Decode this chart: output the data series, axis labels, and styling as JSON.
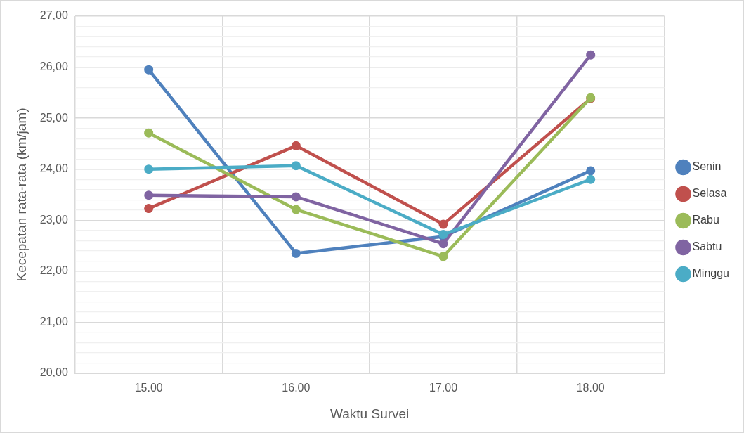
{
  "chart_data": {
    "type": "line",
    "xlabel": "Waktu Survei",
    "ylabel": "Kecepatan rata-rata (km/jam)",
    "categories": [
      "15.00",
      "16.00",
      "17.00",
      "18.00"
    ],
    "series": [
      {
        "name": "Senin",
        "color": "#4f81bd",
        "values": [
          25.95,
          22.35,
          22.68,
          23.97
        ]
      },
      {
        "name": "Selasa",
        "color": "#c0504d",
        "values": [
          23.23,
          24.46,
          22.92,
          25.39
        ]
      },
      {
        "name": "Rabu",
        "color": "#9bbb59",
        "values": [
          24.71,
          23.21,
          22.29,
          25.4
        ]
      },
      {
        "name": "Sabtu",
        "color": "#8064a2",
        "values": [
          23.49,
          23.46,
          22.54,
          26.24
        ]
      },
      {
        "name": "Minggu",
        "color": "#4bacc6",
        "values": [
          24.0,
          24.07,
          22.72,
          23.8
        ]
      }
    ],
    "ylim": [
      20,
      27
    ],
    "yticks": [
      {
        "value": 20,
        "label": "20,00"
      },
      {
        "value": 20.2,
        "label": null
      },
      {
        "value": 20.4,
        "label": null
      },
      {
        "value": 20.6,
        "label": null
      },
      {
        "value": 20.8,
        "label": null
      },
      {
        "value": 21,
        "label": "21,00"
      },
      {
        "value": 21.2,
        "label": null
      },
      {
        "value": 21.4,
        "label": null
      },
      {
        "value": 21.6,
        "label": null
      },
      {
        "value": 21.8,
        "label": null
      },
      {
        "value": 22,
        "label": "22,00"
      },
      {
        "value": 22.2,
        "label": null
      },
      {
        "value": 22.4,
        "label": null
      },
      {
        "value": 22.6,
        "label": null
      },
      {
        "value": 22.8,
        "label": null
      },
      {
        "value": 23,
        "label": "23,00"
      },
      {
        "value": 23.2,
        "label": null
      },
      {
        "value": 23.4,
        "label": null
      },
      {
        "value": 23.6,
        "label": null
      },
      {
        "value": 23.8,
        "label": null
      },
      {
        "value": 24,
        "label": "24,00"
      },
      {
        "value": 24.2,
        "label": null
      },
      {
        "value": 24.4,
        "label": null
      },
      {
        "value": 24.6,
        "label": null
      },
      {
        "value": 24.8,
        "label": null
      },
      {
        "value": 25,
        "label": "25,00"
      },
      {
        "value": 25.2,
        "label": null
      },
      {
        "value": 25.4,
        "label": null
      },
      {
        "value": 25.6,
        "label": null
      },
      {
        "value": 25.8,
        "label": null
      },
      {
        "value": 26,
        "label": "26,00"
      },
      {
        "value": 26.2,
        "label": null
      },
      {
        "value": 26.4,
        "label": null
      },
      {
        "value": 26.6,
        "label": null
      },
      {
        "value": 26.8,
        "label": null
      },
      {
        "value": 27,
        "label": "27,00"
      }
    ],
    "grid": true,
    "legend": "right",
    "marker": "circle",
    "line_style": "solid"
  }
}
